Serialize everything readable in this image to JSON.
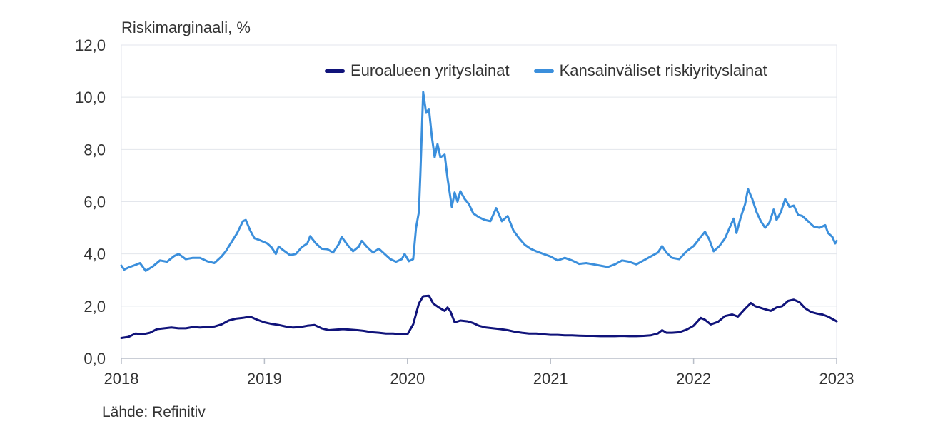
{
  "chart_data": {
    "type": "line",
    "title": "",
    "ylabel": "Riskimarginaali, %",
    "xlabel": "",
    "source": "Lähde: Refinitiv",
    "xlim": [
      2018,
      2023
    ],
    "ylim": [
      0,
      12
    ],
    "x_ticks": [
      2018,
      2019,
      2020,
      2021,
      2022,
      2023
    ],
    "y_ticks": [
      "0,0",
      "2,0",
      "4,0",
      "6,0",
      "8,0",
      "10,0",
      "12,0"
    ],
    "y_tick_values": [
      0,
      2,
      4,
      6,
      8,
      10,
      12
    ],
    "grid": true,
    "legend": "top-right",
    "series": [
      {
        "name": "Euroalueen yrityslainat",
        "color": "#10137a",
        "points": [
          [
            2018.0,
            0.78
          ],
          [
            2018.05,
            0.82
          ],
          [
            2018.1,
            0.95
          ],
          [
            2018.15,
            0.92
          ],
          [
            2018.2,
            0.98
          ],
          [
            2018.25,
            1.12
          ],
          [
            2018.3,
            1.15
          ],
          [
            2018.35,
            1.18
          ],
          [
            2018.4,
            1.15
          ],
          [
            2018.45,
            1.15
          ],
          [
            2018.5,
            1.2
          ],
          [
            2018.55,
            1.18
          ],
          [
            2018.6,
            1.2
          ],
          [
            2018.65,
            1.22
          ],
          [
            2018.7,
            1.3
          ],
          [
            2018.75,
            1.45
          ],
          [
            2018.8,
            1.52
          ],
          [
            2018.85,
            1.55
          ],
          [
            2018.9,
            1.6
          ],
          [
            2018.95,
            1.48
          ],
          [
            2019.0,
            1.38
          ],
          [
            2019.05,
            1.32
          ],
          [
            2019.1,
            1.28
          ],
          [
            2019.15,
            1.22
          ],
          [
            2019.2,
            1.18
          ],
          [
            2019.25,
            1.2
          ],
          [
            2019.3,
            1.25
          ],
          [
            2019.35,
            1.28
          ],
          [
            2019.4,
            1.15
          ],
          [
            2019.45,
            1.08
          ],
          [
            2019.5,
            1.1
          ],
          [
            2019.55,
            1.12
          ],
          [
            2019.6,
            1.1
          ],
          [
            2019.65,
            1.08
          ],
          [
            2019.7,
            1.05
          ],
          [
            2019.75,
            1.0
          ],
          [
            2019.8,
            0.98
          ],
          [
            2019.85,
            0.95
          ],
          [
            2019.9,
            0.95
          ],
          [
            2019.95,
            0.92
          ],
          [
            2020.0,
            0.92
          ],
          [
            2020.04,
            1.3
          ],
          [
            2020.08,
            2.1
          ],
          [
            2020.11,
            2.38
          ],
          [
            2020.15,
            2.4
          ],
          [
            2020.18,
            2.1
          ],
          [
            2020.22,
            1.95
          ],
          [
            2020.26,
            1.82
          ],
          [
            2020.28,
            1.95
          ],
          [
            2020.3,
            1.8
          ],
          [
            2020.33,
            1.38
          ],
          [
            2020.37,
            1.45
          ],
          [
            2020.42,
            1.42
          ],
          [
            2020.46,
            1.35
          ],
          [
            2020.5,
            1.25
          ],
          [
            2020.55,
            1.18
          ],
          [
            2020.6,
            1.15
          ],
          [
            2020.65,
            1.12
          ],
          [
            2020.7,
            1.08
          ],
          [
            2020.75,
            1.02
          ],
          [
            2020.8,
            0.98
          ],
          [
            2020.85,
            0.95
          ],
          [
            2020.9,
            0.95
          ],
          [
            2020.95,
            0.92
          ],
          [
            2021.0,
            0.9
          ],
          [
            2021.05,
            0.9
          ],
          [
            2021.1,
            0.88
          ],
          [
            2021.15,
            0.88
          ],
          [
            2021.2,
            0.87
          ],
          [
            2021.25,
            0.86
          ],
          [
            2021.3,
            0.86
          ],
          [
            2021.35,
            0.85
          ],
          [
            2021.4,
            0.85
          ],
          [
            2021.45,
            0.85
          ],
          [
            2021.5,
            0.86
          ],
          [
            2021.55,
            0.85
          ],
          [
            2021.6,
            0.85
          ],
          [
            2021.65,
            0.86
          ],
          [
            2021.7,
            0.88
          ],
          [
            2021.75,
            0.95
          ],
          [
            2021.78,
            1.08
          ],
          [
            2021.81,
            0.98
          ],
          [
            2021.85,
            0.98
          ],
          [
            2021.9,
            1.0
          ],
          [
            2021.95,
            1.1
          ],
          [
            2022.0,
            1.25
          ],
          [
            2022.05,
            1.55
          ],
          [
            2022.08,
            1.48
          ],
          [
            2022.12,
            1.3
          ],
          [
            2022.17,
            1.4
          ],
          [
            2022.22,
            1.62
          ],
          [
            2022.27,
            1.68
          ],
          [
            2022.31,
            1.6
          ],
          [
            2022.36,
            1.9
          ],
          [
            2022.4,
            2.12
          ],
          [
            2022.43,
            2.0
          ],
          [
            2022.46,
            1.95
          ],
          [
            2022.5,
            1.88
          ],
          [
            2022.54,
            1.82
          ],
          [
            2022.58,
            1.95
          ],
          [
            2022.62,
            2.0
          ],
          [
            2022.66,
            2.2
          ],
          [
            2022.7,
            2.25
          ],
          [
            2022.74,
            2.15
          ],
          [
            2022.78,
            1.92
          ],
          [
            2022.82,
            1.78
          ],
          [
            2022.86,
            1.72
          ],
          [
            2022.9,
            1.68
          ],
          [
            2022.94,
            1.6
          ],
          [
            2023.0,
            1.42
          ]
        ]
      },
      {
        "name": "Kansainväliset riskiyrityslainat",
        "color": "#3b8fdc",
        "points": [
          [
            2018.0,
            3.55
          ],
          [
            2018.02,
            3.4
          ],
          [
            2018.05,
            3.48
          ],
          [
            2018.1,
            3.58
          ],
          [
            2018.13,
            3.65
          ],
          [
            2018.17,
            3.35
          ],
          [
            2018.22,
            3.52
          ],
          [
            2018.27,
            3.75
          ],
          [
            2018.32,
            3.7
          ],
          [
            2018.37,
            3.92
          ],
          [
            2018.4,
            4.0
          ],
          [
            2018.45,
            3.8
          ],
          [
            2018.5,
            3.85
          ],
          [
            2018.55,
            3.85
          ],
          [
            2018.6,
            3.72
          ],
          [
            2018.65,
            3.65
          ],
          [
            2018.7,
            3.9
          ],
          [
            2018.73,
            4.1
          ],
          [
            2018.77,
            4.45
          ],
          [
            2018.81,
            4.8
          ],
          [
            2018.85,
            5.25
          ],
          [
            2018.87,
            5.3
          ],
          [
            2018.9,
            4.9
          ],
          [
            2018.93,
            4.6
          ],
          [
            2018.97,
            4.52
          ],
          [
            2019.02,
            4.4
          ],
          [
            2019.05,
            4.25
          ],
          [
            2019.08,
            4.0
          ],
          [
            2019.1,
            4.28
          ],
          [
            2019.13,
            4.15
          ],
          [
            2019.18,
            3.95
          ],
          [
            2019.22,
            4.0
          ],
          [
            2019.26,
            4.25
          ],
          [
            2019.3,
            4.4
          ],
          [
            2019.32,
            4.68
          ],
          [
            2019.36,
            4.4
          ],
          [
            2019.4,
            4.2
          ],
          [
            2019.44,
            4.18
          ],
          [
            2019.48,
            4.05
          ],
          [
            2019.52,
            4.38
          ],
          [
            2019.54,
            4.65
          ],
          [
            2019.58,
            4.35
          ],
          [
            2019.62,
            4.1
          ],
          [
            2019.66,
            4.28
          ],
          [
            2019.68,
            4.5
          ],
          [
            2019.72,
            4.25
          ],
          [
            2019.76,
            4.05
          ],
          [
            2019.8,
            4.2
          ],
          [
            2019.84,
            4.0
          ],
          [
            2019.88,
            3.8
          ],
          [
            2019.92,
            3.7
          ],
          [
            2019.96,
            3.8
          ],
          [
            2019.98,
            4.0
          ],
          [
            2020.01,
            3.72
          ],
          [
            2020.04,
            3.8
          ],
          [
            2020.06,
            5.0
          ],
          [
            2020.08,
            5.6
          ],
          [
            2020.09,
            7.0
          ],
          [
            2020.11,
            10.2
          ],
          [
            2020.13,
            9.4
          ],
          [
            2020.15,
            9.55
          ],
          [
            2020.17,
            8.5
          ],
          [
            2020.19,
            7.7
          ],
          [
            2020.21,
            8.2
          ],
          [
            2020.23,
            7.7
          ],
          [
            2020.26,
            7.8
          ],
          [
            2020.28,
            6.9
          ],
          [
            2020.31,
            5.8
          ],
          [
            2020.33,
            6.35
          ],
          [
            2020.35,
            6.0
          ],
          [
            2020.37,
            6.4
          ],
          [
            2020.4,
            6.1
          ],
          [
            2020.43,
            5.9
          ],
          [
            2020.46,
            5.55
          ],
          [
            2020.5,
            5.4
          ],
          [
            2020.54,
            5.3
          ],
          [
            2020.58,
            5.25
          ],
          [
            2020.62,
            5.75
          ],
          [
            2020.66,
            5.25
          ],
          [
            2020.7,
            5.45
          ],
          [
            2020.74,
            4.9
          ],
          [
            2020.78,
            4.6
          ],
          [
            2020.82,
            4.35
          ],
          [
            2020.86,
            4.2
          ],
          [
            2020.9,
            4.1
          ],
          [
            2020.95,
            4.0
          ],
          [
            2021.0,
            3.9
          ],
          [
            2021.05,
            3.75
          ],
          [
            2021.1,
            3.85
          ],
          [
            2021.15,
            3.75
          ],
          [
            2021.2,
            3.62
          ],
          [
            2021.25,
            3.65
          ],
          [
            2021.3,
            3.6
          ],
          [
            2021.35,
            3.55
          ],
          [
            2021.4,
            3.5
          ],
          [
            2021.45,
            3.6
          ],
          [
            2021.5,
            3.75
          ],
          [
            2021.55,
            3.7
          ],
          [
            2021.6,
            3.6
          ],
          [
            2021.65,
            3.75
          ],
          [
            2021.7,
            3.9
          ],
          [
            2021.75,
            4.05
          ],
          [
            2021.78,
            4.3
          ],
          [
            2021.81,
            4.05
          ],
          [
            2021.85,
            3.85
          ],
          [
            2021.9,
            3.8
          ],
          [
            2021.95,
            4.1
          ],
          [
            2022.0,
            4.3
          ],
          [
            2022.05,
            4.65
          ],
          [
            2022.08,
            4.85
          ],
          [
            2022.11,
            4.55
          ],
          [
            2022.14,
            4.1
          ],
          [
            2022.18,
            4.3
          ],
          [
            2022.22,
            4.6
          ],
          [
            2022.26,
            5.1
          ],
          [
            2022.28,
            5.35
          ],
          [
            2022.3,
            4.8
          ],
          [
            2022.33,
            5.4
          ],
          [
            2022.36,
            5.9
          ],
          [
            2022.38,
            6.48
          ],
          [
            2022.41,
            6.1
          ],
          [
            2022.44,
            5.6
          ],
          [
            2022.47,
            5.25
          ],
          [
            2022.5,
            5.0
          ],
          [
            2022.53,
            5.2
          ],
          [
            2022.56,
            5.7
          ],
          [
            2022.58,
            5.3
          ],
          [
            2022.61,
            5.6
          ],
          [
            2022.64,
            6.1
          ],
          [
            2022.67,
            5.8
          ],
          [
            2022.7,
            5.85
          ],
          [
            2022.73,
            5.5
          ],
          [
            2022.76,
            5.45
          ],
          [
            2022.8,
            5.25
          ],
          [
            2022.84,
            5.05
          ],
          [
            2022.88,
            5.0
          ],
          [
            2022.92,
            5.1
          ],
          [
            2022.94,
            4.8
          ],
          [
            2022.97,
            4.65
          ],
          [
            2022.99,
            4.4
          ],
          [
            2023.0,
            4.5
          ]
        ]
      }
    ]
  }
}
